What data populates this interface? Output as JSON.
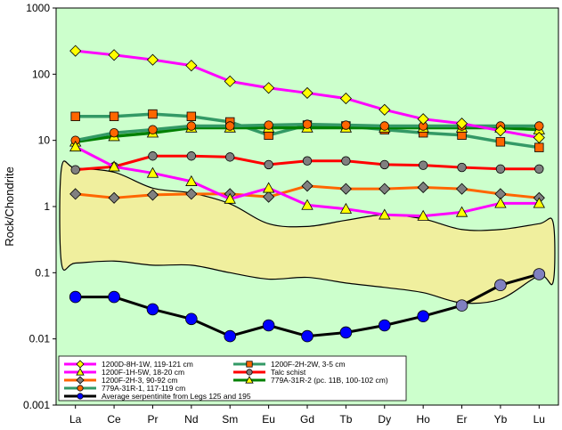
{
  "chart_data": {
    "type": "line",
    "ylabel": "Rock/Chondrite",
    "xlabel": "",
    "y_scale": "log",
    "ylim": [
      0.001,
      1000
    ],
    "y_ticks": [
      "0.001",
      "0.01",
      "0.1",
      "1",
      "10",
      "100",
      "1000"
    ],
    "categories": [
      "La",
      "Ce",
      "Pr",
      "Nd",
      "Sm",
      "Eu",
      "Gd",
      "Tb",
      "Dy",
      "Ho",
      "Er",
      "Yb",
      "Lu"
    ],
    "legend_position": "bottom-center",
    "colors": {
      "plot_bg": "#ccffcc",
      "field_fill": "#f0ef9e",
      "field_stroke": "#000000"
    },
    "field_label": "",
    "series": [
      {
        "name": "1200D-8H-1W, 119-121 cm",
        "line": "#ff00ff",
        "marker": "diamond",
        "fill": "#ffff00",
        "values": [
          225,
          195,
          165,
          135,
          78,
          62,
          52,
          43,
          29,
          21,
          18,
          14,
          11
        ]
      },
      {
        "name": "1200F-1H-5W, 18-20 cm",
        "line": "#ff00ff",
        "marker": "triangle",
        "fill": "#ffff00",
        "values": [
          8,
          4,
          3.2,
          2.4,
          1.3,
          1.9,
          1.05,
          0.92,
          0.75,
          0.72,
          0.82,
          1.12,
          1.12
        ]
      },
      {
        "name": "1200F-2H-3, 90-92 cm",
        "line": "#ff6600",
        "marker": "diamond",
        "fill": "#808080",
        "values": [
          1.55,
          1.35,
          1.5,
          1.55,
          1.55,
          1.4,
          2.05,
          1.85,
          1.85,
          1.95,
          1.85,
          1.55,
          1.35
        ]
      },
      {
        "name": "779A-31R-1, 117-119 cm",
        "line": "#339966",
        "marker": "circle",
        "fill": "#ff6600",
        "values": [
          10,
          13,
          14.5,
          16.5,
          16.5,
          17,
          17.5,
          17,
          16.5,
          16.5,
          16.5,
          16.5,
          16.5
        ]
      },
      {
        "name": "1200F-2H-2W, 3-5 cm",
        "line": "#339966",
        "marker": "square",
        "fill": "#ff6600",
        "values": [
          23,
          23,
          25,
          23,
          19,
          12,
          17,
          16.5,
          14.5,
          13,
          12,
          9.5,
          7.8
        ]
      },
      {
        "name": "Talc schist",
        "line": "#ff0000",
        "marker": "circle",
        "fill": "#808080",
        "values": [
          3.6,
          4,
          5.8,
          5.8,
          5.6,
          4.3,
          4.9,
          4.9,
          4.3,
          4.2,
          3.9,
          3.7,
          3.7
        ]
      },
      {
        "name": "779A-31R-2 (pc. 11B, 100-102 cm)",
        "line": "#008000",
        "marker": "triangle",
        "fill": "#ffff00",
        "values": [
          9.5,
          11.5,
          13,
          15.5,
          15.5,
          15.5,
          15.5,
          15.5,
          15.5,
          15.5,
          15.5,
          15.5,
          14.5
        ]
      },
      {
        "name": "Average serpentinite from Legs 125 and 195",
        "line": "#000000",
        "marker": "circle",
        "fill": "#0000ff",
        "values": [
          0.043,
          0.043,
          0.028,
          0.02,
          0.011,
          0.016,
          0.011,
          0.0125,
          0.016,
          0.022,
          0.032,
          0.065,
          0.095
        ]
      }
    ],
    "field": {
      "upper": [
        3.8,
        3.3,
        1.9,
        1.6,
        1.1,
        0.55,
        0.5,
        0.62,
        0.75,
        0.65,
        0.45,
        0.45,
        0.55
      ],
      "lower": [
        0.14,
        0.15,
        0.13,
        0.13,
        0.1,
        0.08,
        0.085,
        0.07,
        0.06,
        0.05,
        0.035,
        0.04,
        0.09
      ]
    }
  }
}
